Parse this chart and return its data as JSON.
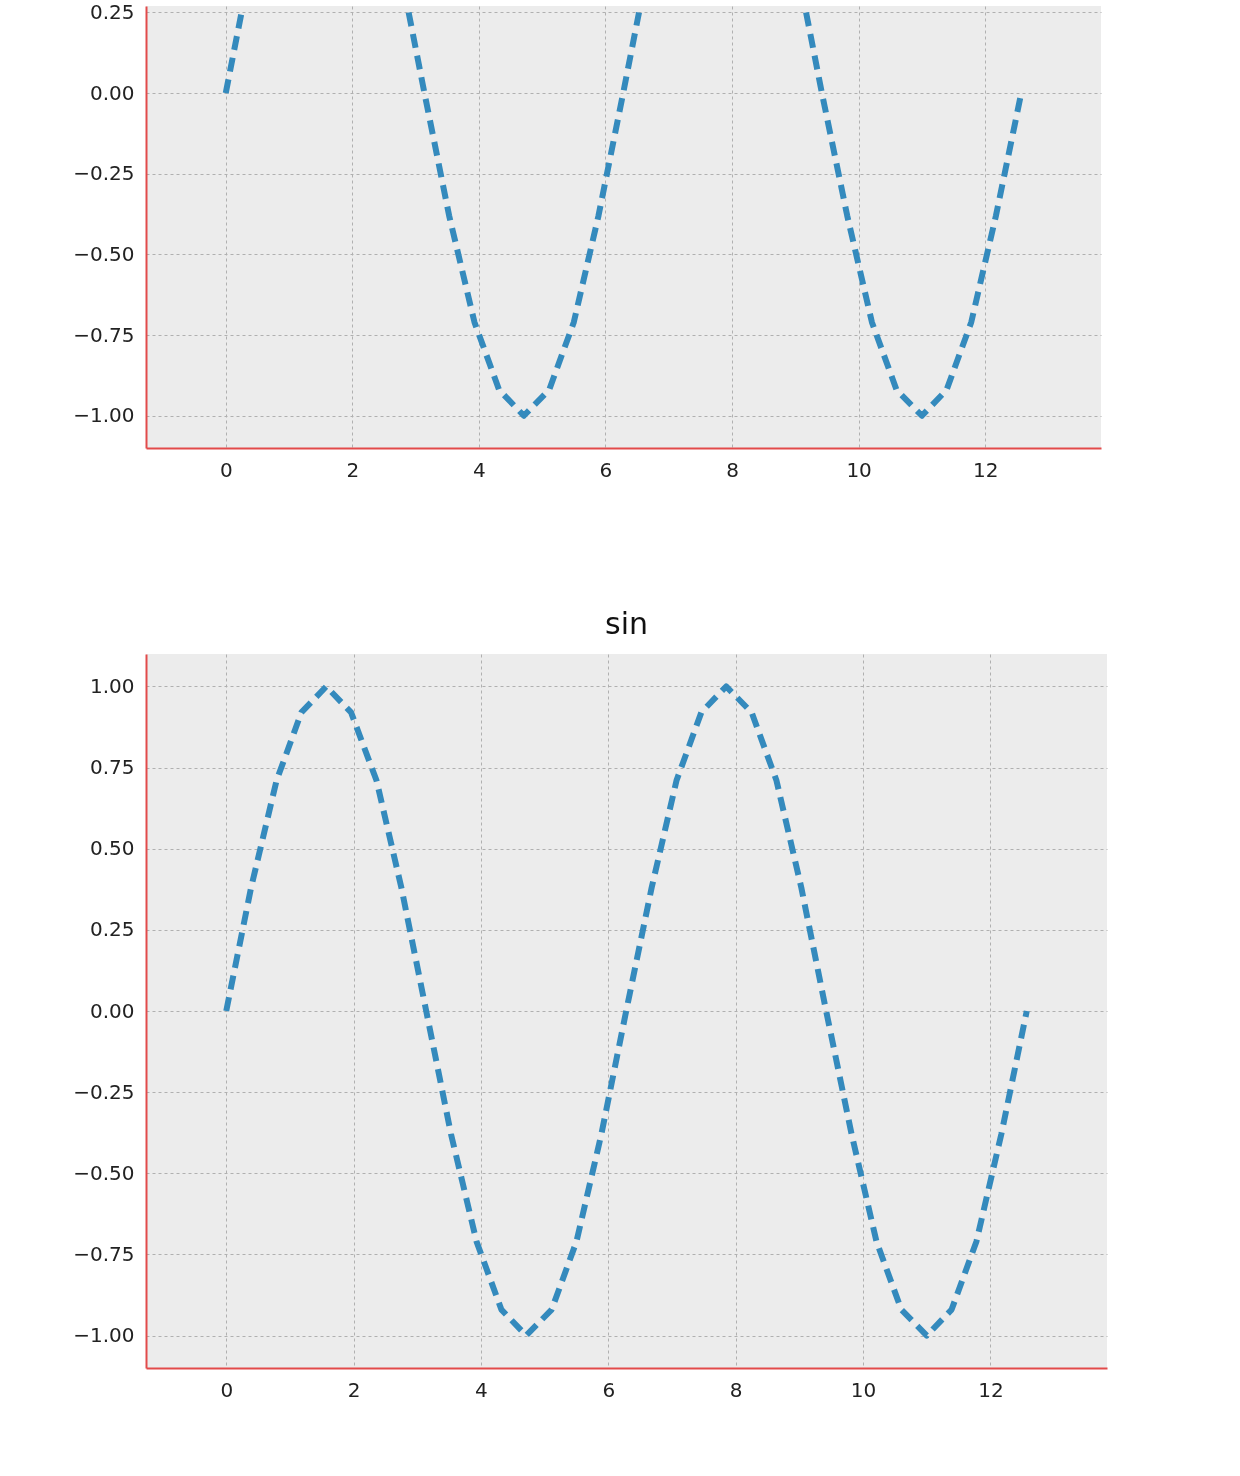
{
  "chart_data": [
    {
      "type": "line",
      "x": [
        0,
        0.25,
        null,
        2.89,
        3.14,
        3.53,
        3.93,
        4.32,
        4.71,
        5.11,
        5.5,
        5.89,
        6.28,
        6.53,
        null,
        9.17,
        9.42,
        9.82,
        10.21,
        10.6,
        11.0,
        11.39,
        11.78,
        12.17,
        12.57
      ],
      "series": [
        {
          "color": "#348abd",
          "values": [
            0,
            0.25,
            null,
            0.25,
            0,
            -0.38,
            -0.71,
            -0.92,
            -1,
            -0.92,
            -0.71,
            -0.38,
            0,
            0.25,
            null,
            0.25,
            0,
            -0.38,
            -0.71,
            -0.92,
            -1,
            -0.92,
            -0.71,
            -0.38,
            0
          ]
        }
      ],
      "xlim": [
        -1.26,
        13.83
      ],
      "xticks": [
        0,
        2,
        4,
        6,
        8,
        10,
        12
      ],
      "ylim": [
        -1.1,
        0.27
      ],
      "yticks": [
        {
          "value": -1,
          "label": "−1.00"
        },
        {
          "value": -0.75,
          "label": "−0.75"
        },
        {
          "value": -0.5,
          "label": "−0.50"
        },
        {
          "value": -0.25,
          "label": "−0.25"
        },
        {
          "value": 0,
          "label": "0.00"
        },
        {
          "value": 0.25,
          "label": "0.25"
        }
      ],
      "grid": true,
      "line_style": "dashed",
      "marker": "none"
    },
    {
      "type": "line",
      "title": "sin",
      "x": [
        0,
        0.39,
        0.79,
        1.18,
        1.57,
        1.96,
        2.36,
        2.75,
        3.14,
        3.53,
        3.93,
        4.32,
        4.71,
        5.11,
        5.5,
        5.89,
        6.28,
        6.68,
        7.07,
        7.46,
        7.85,
        8.25,
        8.64,
        9.03,
        9.42,
        9.82,
        10.21,
        10.6,
        11.0,
        11.39,
        11.78,
        12.17,
        12.57
      ],
      "series": [
        {
          "color": "#348abd",
          "values": [
            0,
            0.38,
            0.71,
            0.92,
            1,
            0.92,
            0.71,
            0.38,
            0,
            -0.38,
            -0.71,
            -0.92,
            -1,
            -0.92,
            -0.71,
            -0.38,
            0,
            0.38,
            0.71,
            0.92,
            1,
            0.92,
            0.71,
            0.38,
            0,
            -0.38,
            -0.71,
            -0.92,
            -1,
            -0.92,
            -0.71,
            -0.38,
            0
          ]
        }
      ],
      "xlim": [
        -1.26,
        13.83
      ],
      "xticks": [
        0,
        2,
        4,
        6,
        8,
        10,
        12
      ],
      "ylim": [
        -1.1,
        1.1
      ],
      "yticks": [
        {
          "value": -1,
          "label": "−1.00"
        },
        {
          "value": -0.75,
          "label": "−0.75"
        },
        {
          "value": -0.5,
          "label": "−0.50"
        },
        {
          "value": -0.25,
          "label": "−0.25"
        },
        {
          "value": 0,
          "label": "0.00"
        },
        {
          "value": 0.25,
          "label": "0.25"
        },
        {
          "value": 0.5,
          "label": "0.50"
        },
        {
          "value": 0.75,
          "label": "0.75"
        },
        {
          "value": 1,
          "label": "1.00"
        }
      ],
      "grid": true,
      "line_style": "dashed",
      "marker": "none"
    }
  ]
}
